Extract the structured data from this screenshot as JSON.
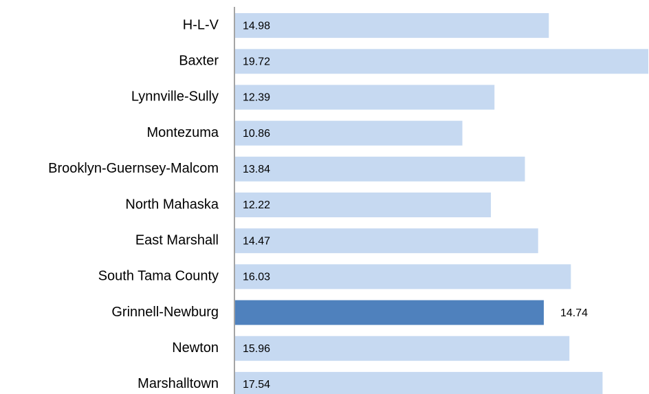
{
  "chart_data": {
    "type": "bar",
    "orientation": "horizontal",
    "categories": [
      "H-L-V",
      "Baxter",
      "Lynnville-Sully",
      "Montezuma",
      "Brooklyn-Guernsey-Malcom",
      "North Mahaska",
      "East Marshall",
      "South Tama County",
      "Grinnell-Newburg",
      "Newton",
      "Marshalltown"
    ],
    "values": [
      14.98,
      19.72,
      12.39,
      10.86,
      13.84,
      12.22,
      14.47,
      16.03,
      14.74,
      15.96,
      17.54
    ],
    "colors": [
      "#c6d9f1",
      "#c6d9f1",
      "#c6d9f1",
      "#c6d9f1",
      "#c6d9f1",
      "#c6d9f1",
      "#c6d9f1",
      "#c6d9f1",
      "#4f81bd",
      "#c6d9f1",
      "#c6d9f1"
    ],
    "grid": false
  }
}
